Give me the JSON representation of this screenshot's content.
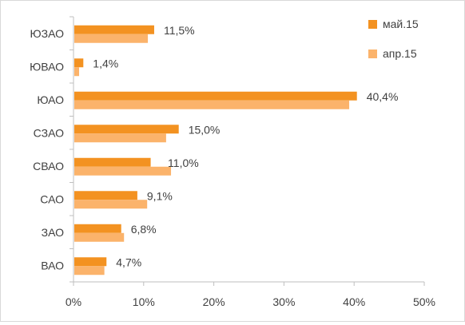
{
  "chart_data": {
    "type": "bar",
    "orientation": "horizontal",
    "categories": [
      "ЮЗАО",
      "ЮВАО",
      "ЮАО",
      "СЗАО",
      "СВАО",
      "САО",
      "ЗАО",
      "ВАО"
    ],
    "series": [
      {
        "name": "май.15",
        "color": "#f39221",
        "values": [
          11.5,
          1.4,
          40.4,
          15.0,
          11.0,
          9.1,
          6.8,
          4.7
        ],
        "labels": [
          "11,5%",
          "1,4%",
          "40,4%",
          "15,0%",
          "11,0%",
          "9,1%",
          "6,8%",
          "4,7%"
        ]
      },
      {
        "name": "апр.15",
        "color": "#fbb36b",
        "values": [
          10.6,
          0.8,
          39.3,
          13.2,
          13.9,
          10.5,
          7.2,
          4.4
        ]
      }
    ],
    "xlim": [
      0,
      50
    ],
    "xticks": [
      0,
      10,
      20,
      30,
      40,
      50
    ],
    "xtick_labels": [
      "0%",
      "10%",
      "20%",
      "30%",
      "40%",
      "50%"
    ],
    "grid": false,
    "legend_position": "top-right"
  }
}
